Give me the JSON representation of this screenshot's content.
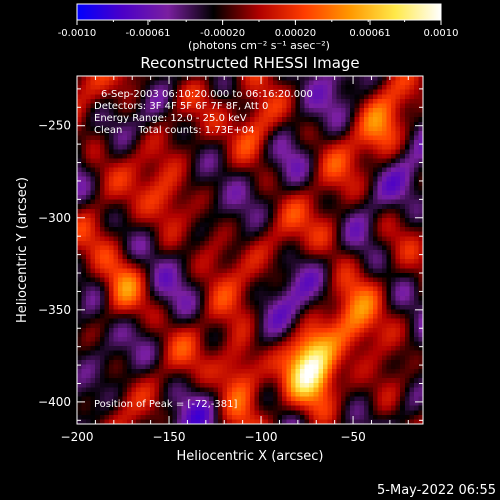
{
  "colorbar": {
    "tick_labels": [
      "-0.0010",
      "-0.00061",
      "-0.00020",
      "0.00020",
      "0.00061",
      "0.0010"
    ],
    "tick_values": [
      -0.001,
      -0.00061,
      -0.0002,
      0.0002,
      0.00061,
      0.001
    ],
    "range": [
      -0.001,
      0.001
    ],
    "units_label": "(photons cm⁻² s⁻¹ asec⁻²)",
    "colors": [
      "#0000ff",
      "#4b00c8",
      "#7a1fa0",
      "#000000",
      "#b00000",
      "#ff3c00",
      "#ff9800",
      "#ffe94a",
      "#ffffff"
    ]
  },
  "chart_data": {
    "type": "heatmap",
    "title": "Reconstructed RHESSI Image",
    "xlabel": "Heliocentric X (arcsec)",
    "ylabel": "Heliocentric Y (arcsec)",
    "xlim": [
      -200,
      -12
    ],
    "ylim": [
      -412,
      -223
    ],
    "x_ticks": [
      -200,
      -150,
      -100,
      -50
    ],
    "x_tick_labels": [
      "−200",
      "−150",
      "−100",
      "−50"
    ],
    "y_ticks": [
      -400,
      -350,
      -300,
      -250
    ],
    "y_tick_labels": [
      "−400",
      "−350",
      "−300",
      "−250"
    ],
    "peak": [
      -72,
      -381
    ],
    "bright_sources": [
      {
        "x": -72,
        "y": -381,
        "value": 1.0
      },
      {
        "x": -112,
        "y": -383,
        "value": 0.8
      },
      {
        "x": -102,
        "y": -250,
        "value": 0.55
      },
      {
        "x": -175,
        "y": -340,
        "value": 0.5
      },
      {
        "x": -170,
        "y": -225,
        "value": 0.45
      },
      {
        "x": -60,
        "y": -310,
        "value": 0.4
      },
      {
        "x": -35,
        "y": -255,
        "value": 0.4
      },
      {
        "x": -150,
        "y": -290,
        "value": 0.35
      },
      {
        "x": -48,
        "y": -355,
        "value": 0.45
      },
      {
        "x": -125,
        "y": -315,
        "value": 0.3
      },
      {
        "x": -190,
        "y": -270,
        "value": 0.35
      },
      {
        "x": -30,
        "y": -395,
        "value": 0.35
      }
    ]
  },
  "info": {
    "time_range": "6-Sep-2003 06:10:20.000 to 06:16:20.000",
    "detectors": "Detectors: 3F 4F 5F 6F 7F 8F, Att 0",
    "energy": "Energy Range: 12.0 - 25.0 keV",
    "clean": "Clean     Total counts: 1.73E+04",
    "peak_text": "Position of Peak = [-72,-381]"
  },
  "footer": {
    "date": "5-May-2022 06:55"
  }
}
